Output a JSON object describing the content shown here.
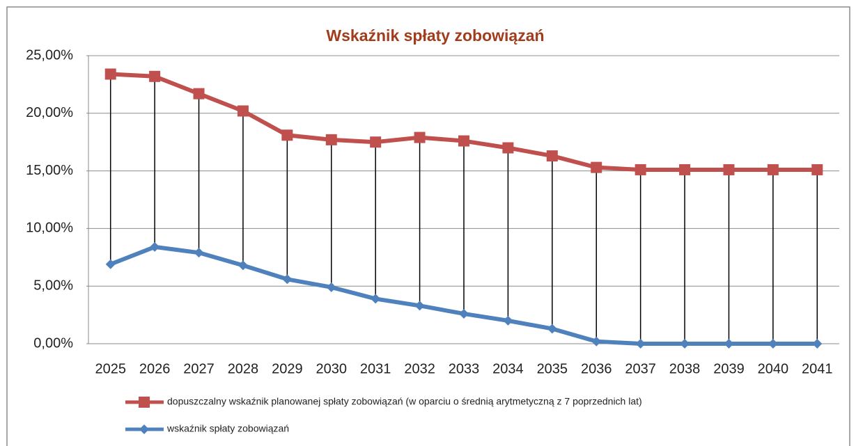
{
  "chart_data": {
    "type": "line",
    "title": "Wskaźnik spłaty zobowiązań",
    "categories": [
      "2025",
      "2026",
      "2027",
      "2028",
      "2029",
      "2030",
      "2031",
      "2032",
      "2033",
      "2034",
      "2035",
      "2036",
      "2037",
      "2038",
      "2039",
      "2040",
      "2041"
    ],
    "series": [
      {
        "name": "dopuszczalny wskaźnik planowanej spłaty zobowiązań (w oparciu o średnią arytmetyczną z 7 poprzednich lat)",
        "color": "#c0504d",
        "marker": "square",
        "values": [
          23.4,
          23.2,
          21.7,
          20.2,
          18.1,
          17.7,
          17.5,
          17.9,
          17.6,
          17.0,
          16.3,
          15.3,
          15.1,
          15.1,
          15.1,
          15.1,
          15.1
        ]
      },
      {
        "name": "wskaźnik spłaty zobowiązań",
        "color": "#4f81bd",
        "marker": "diamond",
        "values": [
          6.9,
          8.4,
          7.9,
          6.8,
          5.6,
          4.9,
          3.9,
          3.3,
          2.6,
          2.0,
          1.3,
          0.2,
          0,
          0,
          0,
          0,
          0
        ]
      }
    ],
    "ylim": [
      0,
      25
    ],
    "yticks": [
      {
        "value": 0,
        "label": "0,00%"
      },
      {
        "value": 5,
        "label": "5,00%"
      },
      {
        "value": 10,
        "label": "10,00%"
      },
      {
        "value": 15,
        "label": "15,00%"
      },
      {
        "value": 20,
        "label": "20,00%"
      },
      {
        "value": 25,
        "label": "25,00%"
      }
    ],
    "grid": true,
    "high_low_lines": true,
    "legend": "bottom"
  }
}
